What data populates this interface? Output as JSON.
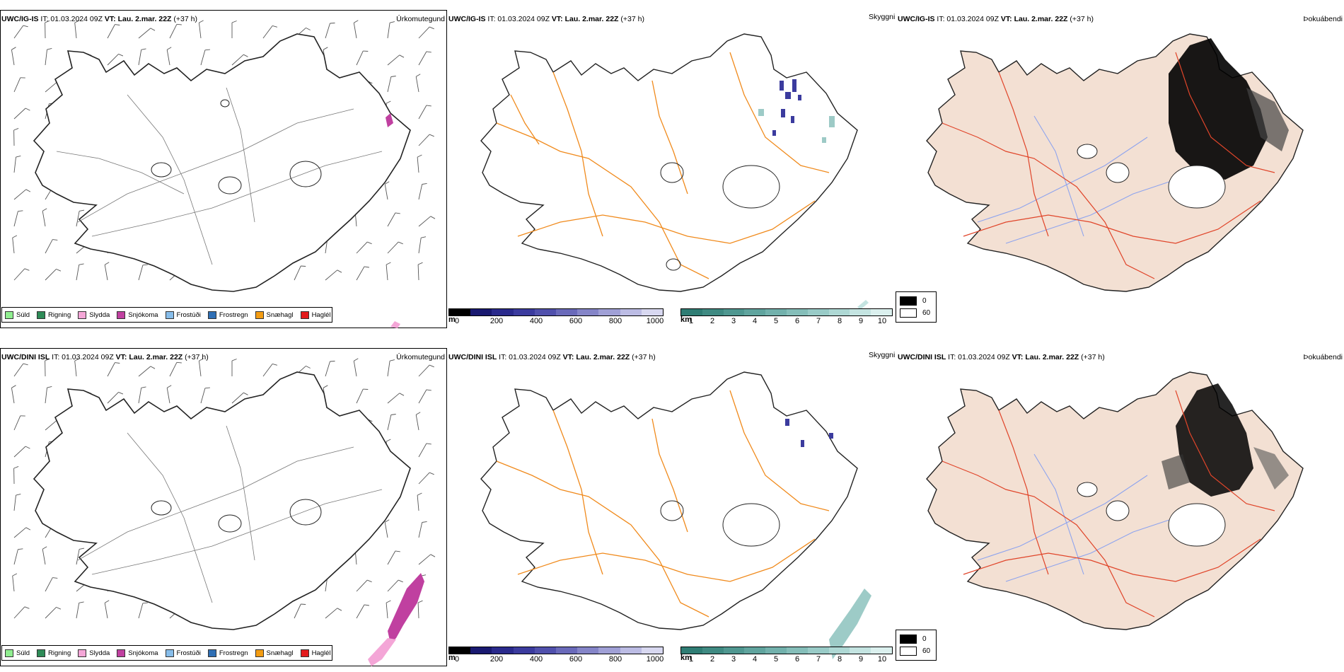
{
  "rows": [
    {
      "model": "UWC/IG-IS",
      "it": "IT: 01.03.2024 09Z",
      "vt_label": "VT: Lau. 2.mar. 22Z",
      "lead": "(+37 h)"
    },
    {
      "model": "UWC/DINI ISL",
      "it": "IT: 01.03.2024 09Z",
      "vt_label": "VT: Lau. 2.mar. 22Z",
      "lead": "(+37 h)"
    }
  ],
  "titles": {
    "precip_type": "Úrkomutegund",
    "visibility": "Skyggni",
    "fog": "Þokuábendi"
  },
  "precip_legend": [
    {
      "label": "Súld",
      "color": "#90ee90"
    },
    {
      "label": "Rigning",
      "color": "#2e8b57"
    },
    {
      "label": "Slydda",
      "color": "#f4a6d7"
    },
    {
      "label": "Snjókoma",
      "color": "#c040a0"
    },
    {
      "label": "Frostúði",
      "color": "#87bdea"
    },
    {
      "label": "Frostregn",
      "color": "#2f6fb5"
    },
    {
      "label": "Snæhagl",
      "color": "#f39c12"
    },
    {
      "label": "Haglél",
      "color": "#e31a1c"
    }
  ],
  "height_bar": {
    "unit": "m",
    "ticks": [
      "0",
      "200",
      "400",
      "600",
      "800",
      "1000"
    ],
    "colors": [
      "#000000",
      "#191970",
      "#2a2a8c",
      "#3b3b9e",
      "#5050ac",
      "#6a6aba",
      "#8585c8",
      "#a0a0d6",
      "#bcbce4",
      "#d8d8f0"
    ]
  },
  "km_bar": {
    "unit": "km",
    "ticks": [
      "1",
      "2",
      "3",
      "4",
      "5",
      "6",
      "7",
      "8",
      "9",
      "10"
    ],
    "colors": [
      "#2f7d74",
      "#3f8a82",
      "#4f9790",
      "#60a49e",
      "#72b1ac",
      "#85beb9",
      "#99cbc7",
      "#aed8d4",
      "#c4e4e1",
      "#dbf0ee"
    ]
  },
  "fog_legend": [
    {
      "label": "0",
      "color": "#000000"
    },
    {
      "label": "60",
      "color": "#ffffff"
    }
  ],
  "colors": {
    "road_orange": "#f08a1c",
    "road_red": "#e0452a",
    "land_fog": "#f3e0d3",
    "river_blue": "#8ea4ee"
  }
}
